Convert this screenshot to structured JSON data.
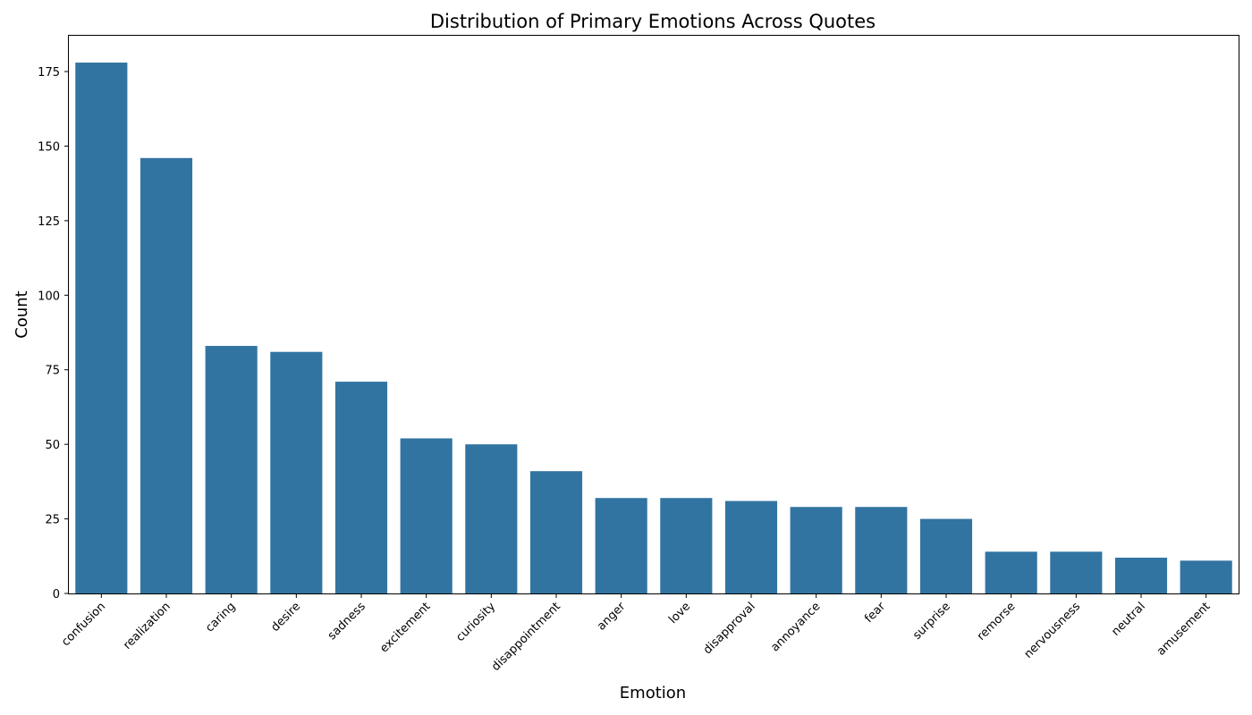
{
  "chart_data": {
    "type": "bar",
    "title": "Distribution of Primary Emotions Across Quotes",
    "xlabel": "Emotion",
    "ylabel": "Count",
    "categories": [
      "confusion",
      "realization",
      "caring",
      "desire",
      "sadness",
      "excitement",
      "curiosity",
      "disappointment",
      "anger",
      "love",
      "disapproval",
      "annoyance",
      "fear",
      "surprise",
      "remorse",
      "nervousness",
      "neutral",
      "amusement"
    ],
    "values": [
      178,
      146,
      83,
      81,
      71,
      52,
      50,
      41,
      32,
      32,
      31,
      29,
      29,
      25,
      14,
      14,
      12,
      11
    ],
    "ylim": [
      0,
      187
    ],
    "yticks": [
      0,
      25,
      50,
      75,
      100,
      125,
      150,
      175
    ],
    "bar_color": "#3274a1",
    "grid": false
  }
}
